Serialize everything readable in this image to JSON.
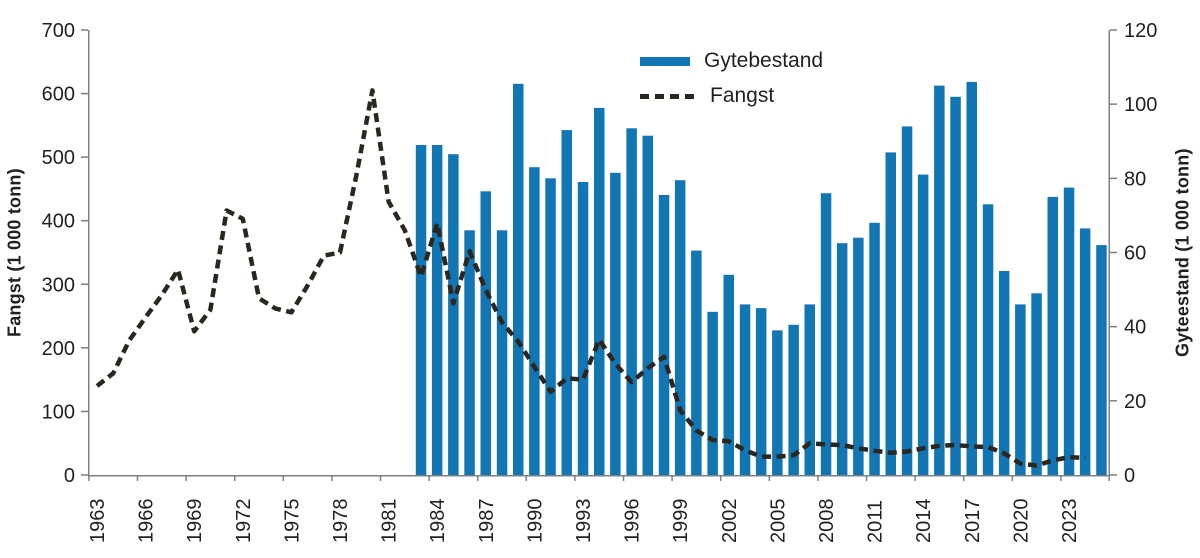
{
  "figure": {
    "left_axis": {
      "title": "Fangst (1 000 tonn)",
      "min": 0,
      "max": 700,
      "ticks": [
        0,
        100,
        200,
        300,
        400,
        500,
        600,
        700
      ]
    },
    "right_axis": {
      "title": "Gyteestand (1 000 tonn)",
      "min": 0,
      "max": 120,
      "ticks": [
        0,
        20,
        40,
        60,
        80,
        100,
        120
      ]
    },
    "x_axis": {
      "label_years": [
        1963,
        1966,
        1969,
        1972,
        1975,
        1978,
        1981,
        1984,
        1987,
        1990,
        1993,
        1996,
        1999,
        2002,
        2005,
        2008,
        2011,
        2014,
        2017,
        2020,
        2023
      ]
    },
    "legend_items": [
      {
        "label": "Gytebestand",
        "type": "bar",
        "color": "#1276b5"
      },
      {
        "label": "Fangst",
        "type": "dashed-line",
        "color": "#2b261e"
      }
    ],
    "colors": {
      "bar": "#1276b5",
      "line": "#2b261e",
      "axis": "#7f7f7f",
      "text": "#231f20",
      "background": "#ffffff"
    }
  },
  "chart_data": {
    "type": "combo-bar-line",
    "title": "",
    "xlabel": "",
    "grid": false,
    "legend_position": "top-center",
    "left_ylim": [
      0,
      700
    ],
    "right_ylim": [
      0,
      120
    ],
    "x_range": [
      1963,
      2025
    ],
    "series": [
      {
        "name": "Gytebestand",
        "type": "bar",
        "axis": "right",
        "unit": "1 000 tonn",
        "color": "#1276b5",
        "x_start": 1983,
        "x": [
          1983,
          1984,
          1985,
          1986,
          1987,
          1988,
          1989,
          1990,
          1991,
          1992,
          1993,
          1994,
          1995,
          1996,
          1997,
          1998,
          1999,
          2000,
          2001,
          2002,
          2003,
          2004,
          2005,
          2006,
          2007,
          2008,
          2009,
          2010,
          2011,
          2012,
          2013,
          2014,
          2015,
          2016,
          2017,
          2018,
          2019,
          2020,
          2021,
          2022,
          2023,
          2024,
          2025
        ],
        "values": [
          89,
          89,
          86.5,
          66,
          76.5,
          66,
          105.5,
          83,
          80,
          93,
          79,
          99,
          81.5,
          93.5,
          91.5,
          75.5,
          79.5,
          60.5,
          44,
          54,
          46,
          45,
          39,
          40.5,
          46,
          76,
          62.5,
          64,
          68,
          87,
          94,
          81,
          105,
          102,
          106,
          73,
          55,
          46,
          49,
          75,
          77.5,
          66.5,
          62
        ]
      },
      {
        "name": "Fangst",
        "type": "line",
        "style": "dashed",
        "axis": "left",
        "unit": "1 000 tonn",
        "color": "#2b261e",
        "x_start": 1963,
        "x": [
          1963,
          1964,
          1965,
          1966,
          1967,
          1968,
          1969,
          1970,
          1971,
          1972,
          1973,
          1974,
          1975,
          1976,
          1977,
          1978,
          1979,
          1980,
          1981,
          1982,
          1983,
          1984,
          1985,
          1986,
          1987,
          1988,
          1989,
          1990,
          1991,
          1992,
          1993,
          1994,
          1995,
          1996,
          1997,
          1998,
          1999,
          2000,
          2001,
          2002,
          2003,
          2004,
          2005,
          2006,
          2007,
          2008,
          2009,
          2010,
          2011,
          2012,
          2013,
          2014,
          2015,
          2016,
          2017,
          2018,
          2019,
          2020,
          2021,
          2022,
          2023,
          2024
        ],
        "values": [
          140,
          160,
          212,
          248,
          283,
          323,
          226,
          260,
          416,
          403,
          278,
          262,
          256,
          298,
          345,
          350,
          470,
          605,
          430,
          385,
          312,
          396,
          270,
          352,
          291,
          240,
          210,
          170,
          131,
          152,
          150,
          213,
          175,
          146,
          168,
          186,
          102,
          70,
          55,
          53,
          39,
          29,
          29,
          31,
          50,
          48,
          47,
          42,
          38,
          35,
          37,
          42,
          46,
          47,
          45,
          44,
          34,
          18,
          15,
          23,
          28,
          27
        ]
      }
    ]
  }
}
